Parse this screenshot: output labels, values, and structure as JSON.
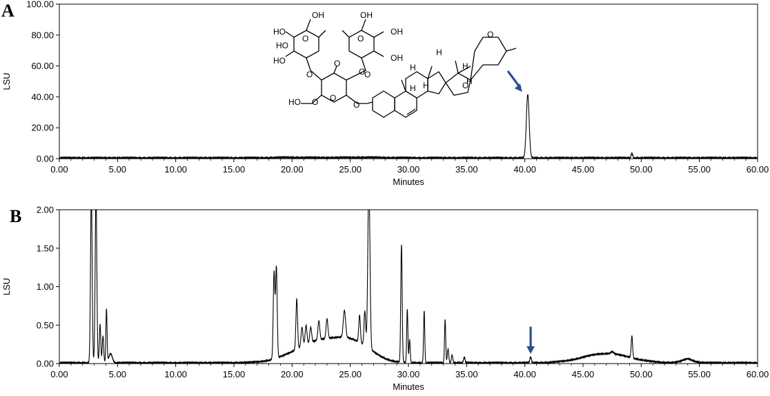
{
  "figure": {
    "panel_a_label": "A",
    "panel_b_label": "B"
  },
  "colors": {
    "trace": "#000000",
    "arrow": "#2e4e8c",
    "axis": "#000000"
  },
  "chart_data": [
    {
      "type": "line",
      "panel": "A",
      "xlabel": "Minutes",
      "ylabel": "LSU",
      "xlim": [
        0,
        60
      ],
      "ylim": [
        0,
        100
      ],
      "x_ticks": [
        "0.00",
        "5.00",
        "10.00",
        "15.00",
        "20.00",
        "25.00",
        "30.00",
        "35.00",
        "40.00",
        "45.00",
        "50.00",
        "55.00",
        "60.00"
      ],
      "y_ticks": [
        "0.00",
        "20.00",
        "40.00",
        "60.00",
        "80.00",
        "100.00"
      ],
      "grid": false,
      "baseline": 0.5,
      "peaks": [
        {
          "x": 40.25,
          "y": 41.0,
          "w": 0.12
        },
        {
          "x": 49.2,
          "y": 3.0,
          "w": 0.07
        }
      ],
      "humps": [
        {
          "x": 20.0,
          "y": 0.3,
          "w": 1.5
        },
        {
          "x": 26.0,
          "y": 0.3,
          "w": 2.0
        }
      ],
      "annotation_arrow": {
        "x": 40.25,
        "direction": "down-right"
      },
      "structure_labels": [
        "OH",
        "HO",
        "HO",
        "HO",
        "OH",
        "OH",
        "OH",
        "O",
        "O",
        "O",
        "O",
        "O",
        "O",
        "HO",
        "O",
        "O",
        "O",
        "O",
        "O",
        "H",
        "H",
        "H",
        "H",
        "H",
        "H"
      ]
    },
    {
      "type": "line",
      "panel": "B",
      "xlabel": "Minutes",
      "ylabel": "LSU",
      "xlim": [
        0,
        60
      ],
      "ylim": [
        0,
        2
      ],
      "x_ticks": [
        "0.00",
        "5.00",
        "10.00",
        "15.00",
        "20.00",
        "25.00",
        "30.00",
        "35.00",
        "40.00",
        "45.00",
        "50.00",
        "55.00",
        "60.00"
      ],
      "y_ticks": [
        "0.00",
        "0.50",
        "1.00",
        "1.50",
        "2.00"
      ],
      "grid": false,
      "baseline": 0.01,
      "peaks": [
        {
          "x": 2.75,
          "y": 2.2,
          "w": 0.07
        },
        {
          "x": 3.15,
          "y": 2.2,
          "w": 0.07
        },
        {
          "x": 3.5,
          "y": 0.5,
          "w": 0.06
        },
        {
          "x": 3.75,
          "y": 0.35,
          "w": 0.06
        },
        {
          "x": 4.05,
          "y": 0.7,
          "w": 0.05
        },
        {
          "x": 4.4,
          "y": 0.12,
          "w": 0.15
        },
        {
          "x": 18.45,
          "y": 1.12,
          "w": 0.07
        },
        {
          "x": 18.65,
          "y": 1.18,
          "w": 0.07
        },
        {
          "x": 20.4,
          "y": 0.65,
          "w": 0.07
        },
        {
          "x": 20.85,
          "y": 0.25,
          "w": 0.08
        },
        {
          "x": 21.2,
          "y": 0.25,
          "w": 0.08
        },
        {
          "x": 21.6,
          "y": 0.2,
          "w": 0.08
        },
        {
          "x": 22.3,
          "y": 0.25,
          "w": 0.08
        },
        {
          "x": 23.0,
          "y": 0.25,
          "w": 0.08
        },
        {
          "x": 24.5,
          "y": 0.35,
          "w": 0.1
        },
        {
          "x": 25.8,
          "y": 0.35,
          "w": 0.07
        },
        {
          "x": 26.25,
          "y": 0.45,
          "w": 0.07
        },
        {
          "x": 26.6,
          "y": 2.2,
          "w": 0.09
        },
        {
          "x": 29.4,
          "y": 1.53,
          "w": 0.06
        },
        {
          "x": 29.9,
          "y": 0.7,
          "w": 0.05
        },
        {
          "x": 30.1,
          "y": 0.3,
          "w": 0.05
        },
        {
          "x": 31.35,
          "y": 0.68,
          "w": 0.05
        },
        {
          "x": 33.15,
          "y": 0.56,
          "w": 0.05
        },
        {
          "x": 33.4,
          "y": 0.18,
          "w": 0.06
        },
        {
          "x": 33.75,
          "y": 0.1,
          "w": 0.06
        },
        {
          "x": 34.8,
          "y": 0.07,
          "w": 0.07
        },
        {
          "x": 40.5,
          "y": 0.07,
          "w": 0.07
        },
        {
          "x": 47.5,
          "y": 0.03,
          "w": 0.12
        },
        {
          "x": 49.2,
          "y": 0.28,
          "w": 0.06
        },
        {
          "x": 54.0,
          "y": 0.02,
          "w": 0.3
        }
      ],
      "humps": [
        {
          "x": 22.5,
          "y": 0.28,
          "w": 2.2
        },
        {
          "x": 25.5,
          "y": 0.18,
          "w": 1.5
        },
        {
          "x": 47.0,
          "y": 0.12,
          "w": 2.0
        },
        {
          "x": 54.0,
          "y": 0.03,
          "w": 0.6
        }
      ],
      "annotation_arrow": {
        "x": 40.5,
        "direction": "down"
      }
    }
  ]
}
